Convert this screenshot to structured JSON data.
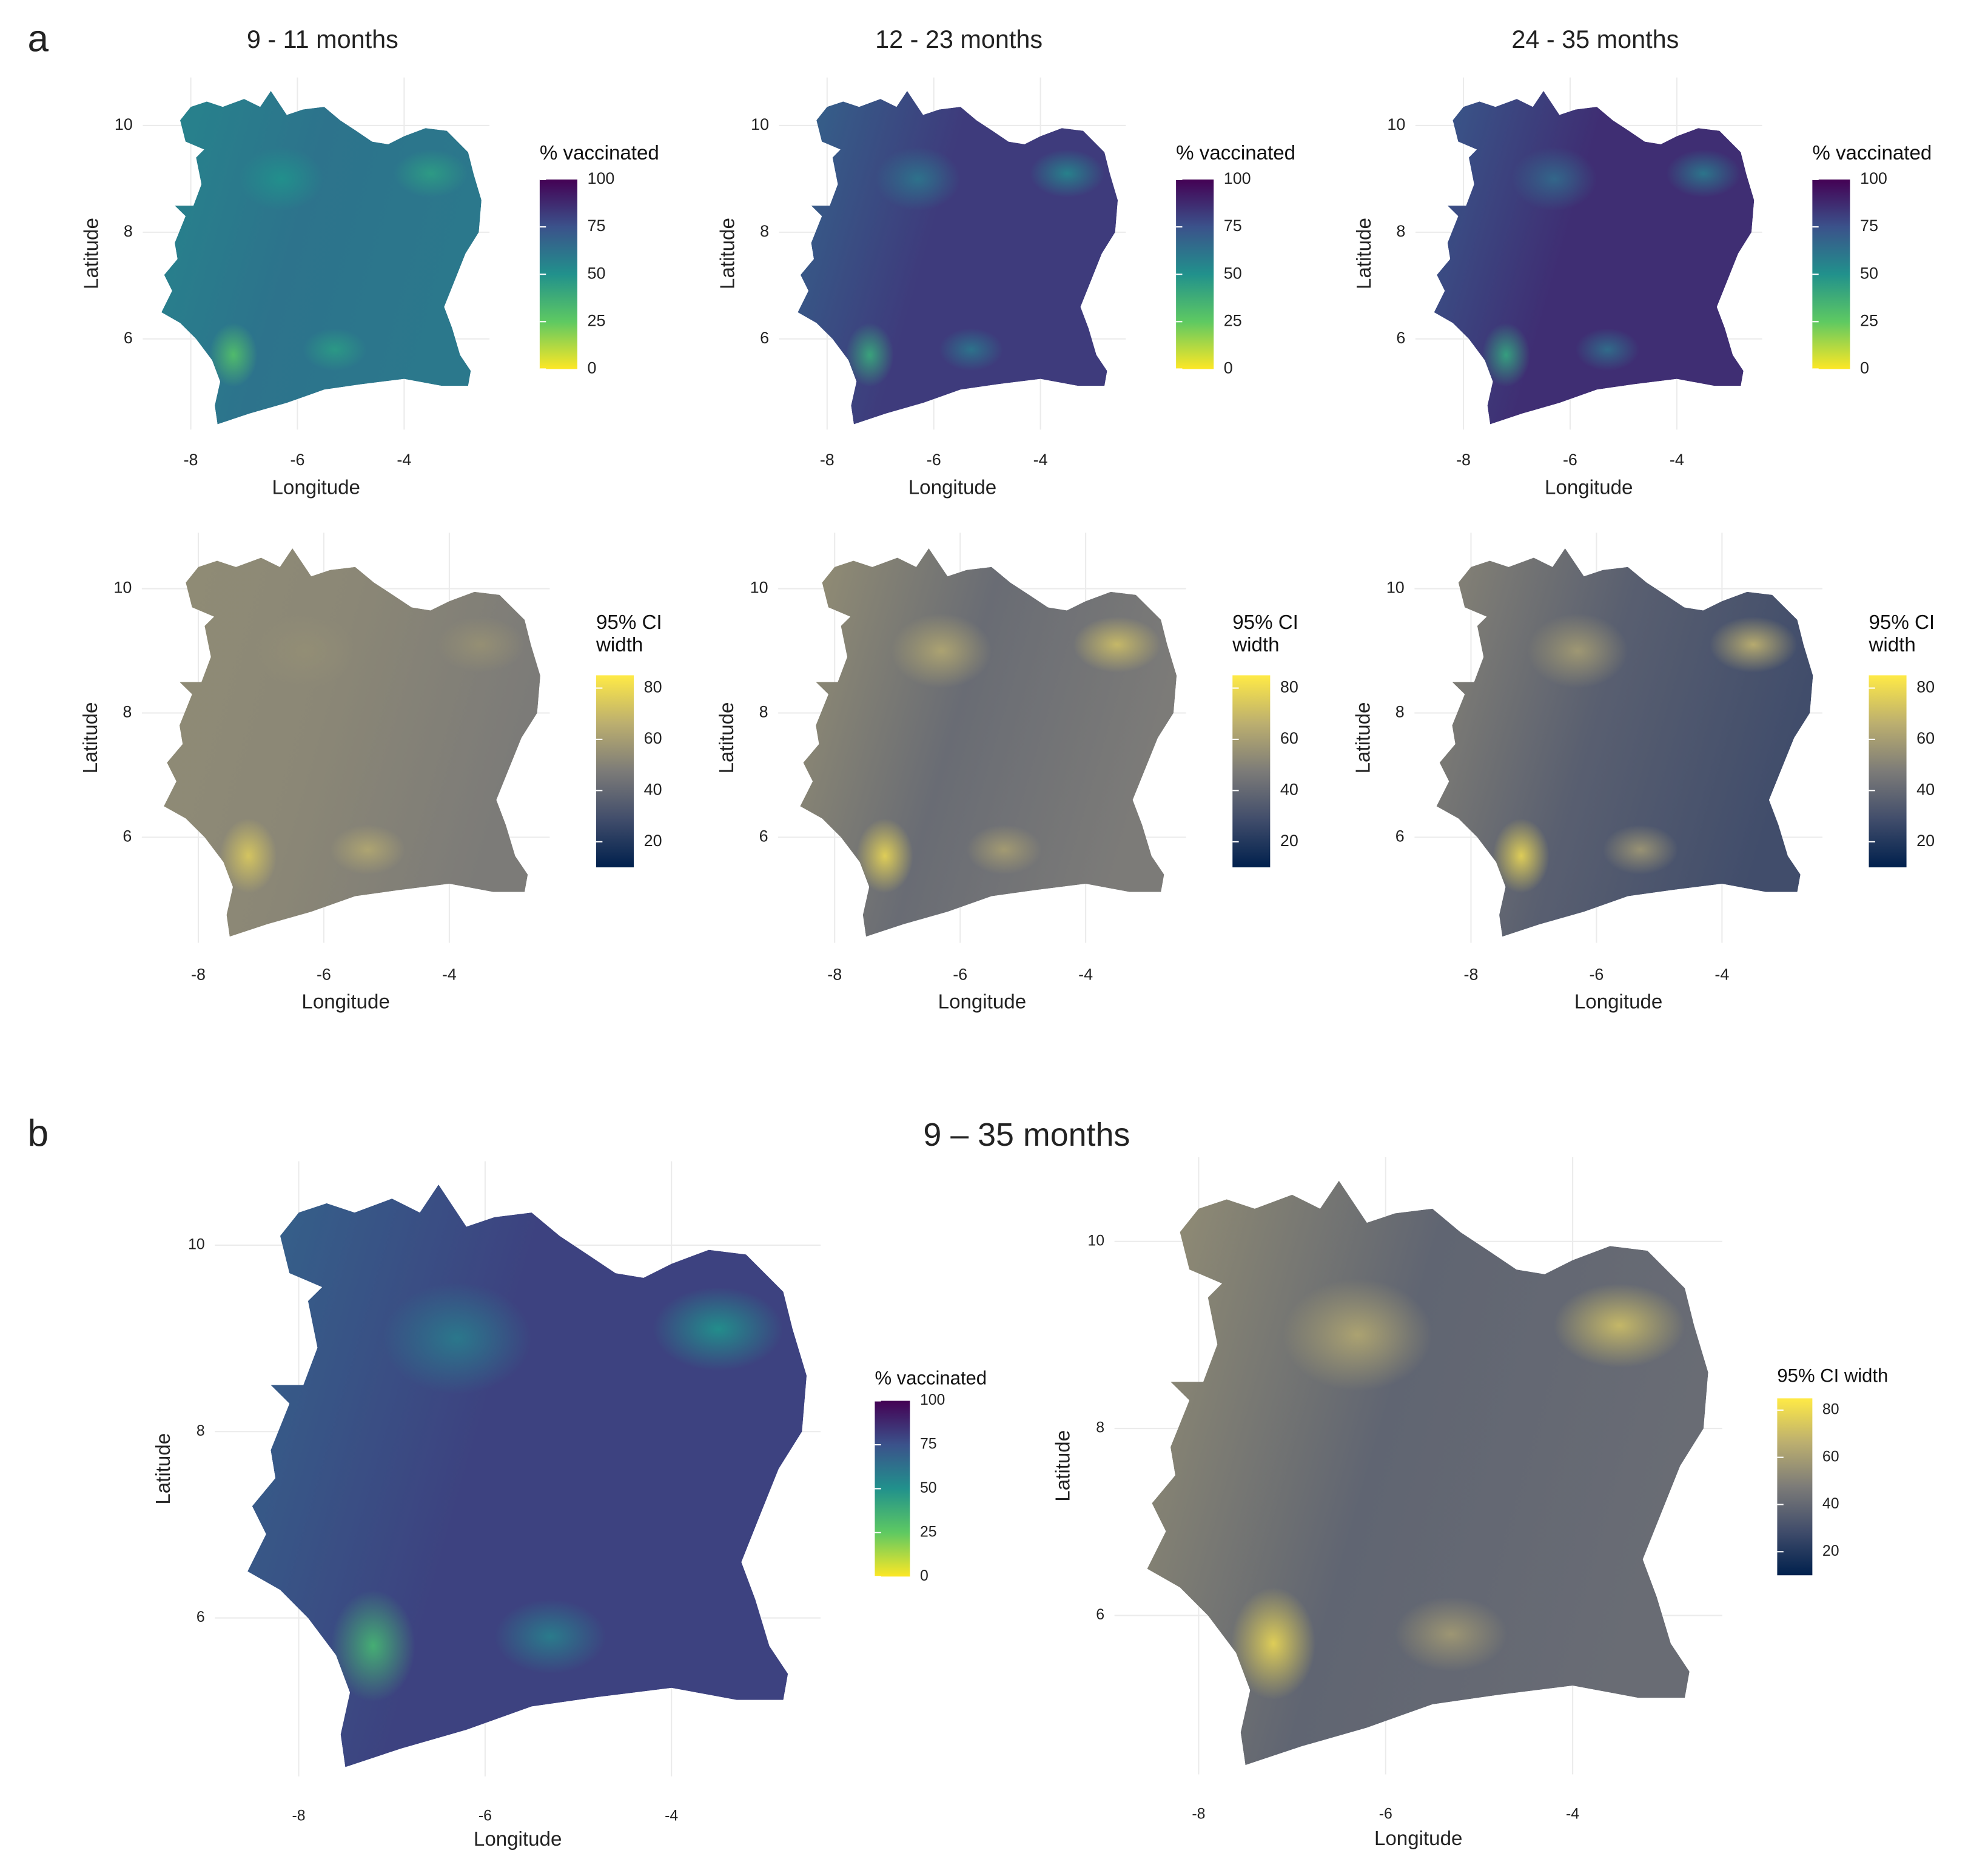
{
  "panel_labels": [
    "a",
    "b"
  ],
  "panel_b_title": "9 – 35 months",
  "maps": [
    {
      "title": "9 - 11 months",
      "x_label": "Longitude",
      "y_label": "Latitude",
      "xlim": [
        -8.9,
        -2.4
      ],
      "ylim": [
        4.3,
        10.9
      ],
      "xticks": [
        -8,
        -6,
        -4
      ],
      "yticks": [
        6,
        8,
        10
      ],
      "legend": {
        "title": "% vaccinated",
        "lim": [
          0,
          100
        ],
        "ticks": [
          0,
          25,
          50,
          75,
          100
        ],
        "colors": [
          "#fde725",
          "#5ec962",
          "#21918c",
          "#3b528b",
          "#440154"
        ]
      }
    },
    {
      "title": "12 - 23 months",
      "x_label": "Longitude",
      "y_label": "Latitude",
      "xlim": [
        -8.9,
        -2.4
      ],
      "ylim": [
        4.3,
        10.9
      ],
      "xticks": [
        -8,
        -6,
        -4
      ],
      "yticks": [
        6,
        8,
        10
      ],
      "legend": {
        "title": "% vaccinated",
        "lim": [
          0,
          100
        ],
        "ticks": [
          0,
          25,
          50,
          75,
          100
        ],
        "colors": [
          "#fde725",
          "#5ec962",
          "#21918c",
          "#3b528b",
          "#440154"
        ]
      }
    },
    {
      "title": "24 - 35 months",
      "x_label": "Longitude",
      "y_label": "Latitude",
      "xlim": [
        -8.9,
        -2.4
      ],
      "ylim": [
        4.3,
        10.9
      ],
      "xticks": [
        -8,
        -6,
        -4
      ],
      "yticks": [
        6,
        8,
        10
      ],
      "legend": {
        "title": "% vaccinated",
        "lim": [
          0,
          100
        ],
        "ticks": [
          0,
          25,
          50,
          75,
          100
        ],
        "colors": [
          "#fde725",
          "#5ec962",
          "#21918c",
          "#3b528b",
          "#440154"
        ]
      }
    },
    {
      "x_label": "Longitude",
      "y_label": "Latitude",
      "xlim": [
        -8.9,
        -2.4
      ],
      "ylim": [
        4.3,
        10.9
      ],
      "xticks": [
        -8,
        -6,
        -4
      ],
      "yticks": [
        6,
        8,
        10
      ],
      "legend": {
        "title": "95% CI width",
        "lim": [
          10,
          85
        ],
        "ticks": [
          20,
          40,
          60,
          80
        ],
        "colors": [
          "#00204d",
          "#414d6b",
          "#7c7b78",
          "#bcaf6f",
          "#ffea46"
        ]
      }
    },
    {
      "x_label": "Longitude",
      "y_label": "Latitude",
      "xlim": [
        -8.9,
        -2.4
      ],
      "ylim": [
        4.3,
        10.9
      ],
      "xticks": [
        -8,
        -6,
        -4
      ],
      "yticks": [
        6,
        8,
        10
      ],
      "legend": {
        "title": "95% CI width",
        "lim": [
          10,
          85
        ],
        "ticks": [
          20,
          40,
          60,
          80
        ],
        "colors": [
          "#00204d",
          "#414d6b",
          "#7c7b78",
          "#bcaf6f",
          "#ffea46"
        ]
      }
    },
    {
      "x_label": "Longitude",
      "y_label": "Latitude",
      "xlim": [
        -8.9,
        -2.4
      ],
      "ylim": [
        4.3,
        10.9
      ],
      "xticks": [
        -8,
        -6,
        -4
      ],
      "yticks": [
        6,
        8,
        10
      ],
      "legend": {
        "title": "95% CI width",
        "lim": [
          10,
          85
        ],
        "ticks": [
          20,
          40,
          60,
          80
        ],
        "colors": [
          "#00204d",
          "#414d6b",
          "#7c7b78",
          "#bcaf6f",
          "#ffea46"
        ]
      }
    },
    {
      "x_label": "Longitude",
      "y_label": "Latitude",
      "xlim": [
        -8.9,
        -2.4
      ],
      "ylim": [
        4.3,
        10.9
      ],
      "xticks": [
        -8,
        -6,
        -4
      ],
      "yticks": [
        6,
        8,
        10
      ],
      "legend": {
        "title": "% vaccinated",
        "lim": [
          0,
          100
        ],
        "ticks": [
          0,
          25,
          50,
          75,
          100
        ],
        "colors": [
          "#fde725",
          "#5ec962",
          "#21918c",
          "#3b528b",
          "#440154"
        ]
      }
    },
    {
      "x_label": "Longitude",
      "y_label": "Latitude",
      "xlim": [
        -8.9,
        -2.4
      ],
      "ylim": [
        4.3,
        10.9
      ],
      "xticks": [
        -8,
        -6,
        -4
      ],
      "yticks": [
        6,
        8,
        10
      ],
      "legend": {
        "title": "95% CI width",
        "lim": [
          10,
          85
        ],
        "ticks": [
          20,
          40,
          60,
          80
        ],
        "colors": [
          "#00204d",
          "#414d6b",
          "#7c7b78",
          "#bcaf6f",
          "#ffea46"
        ]
      }
    }
  ]
}
